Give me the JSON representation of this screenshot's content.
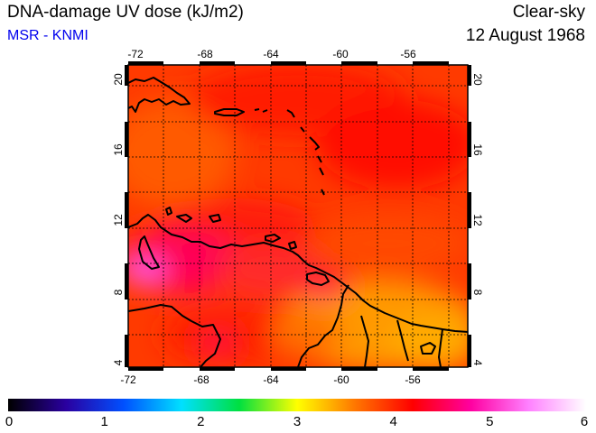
{
  "header": {
    "title": "DNA-damage UV dose (kJ/m2)",
    "organization": "MSR - KNMI",
    "sky_condition": "Clear-sky",
    "date": "12 August 1968"
  },
  "map": {
    "lon_range": [
      -72,
      -53
    ],
    "lat_range": [
      3.5,
      20.5
    ],
    "lon_ticks": [
      "-72",
      "-68",
      "-64",
      "-60",
      "-56"
    ],
    "lat_ticks": [
      "4",
      "8",
      "12",
      "16",
      "20"
    ],
    "grid": true
  },
  "colorbar": {
    "min": 0,
    "max": 6,
    "labels": [
      "0",
      "1",
      "2",
      "3",
      "4",
      "5",
      "6"
    ],
    "colors": [
      "#000000",
      "#2a00a0",
      "#0050ff",
      "#00e0ff",
      "#00e040",
      "#ffff00",
      "#ff7700",
      "#ff0000",
      "#ff00a0",
      "#ff80ff",
      "#ffffff"
    ]
  }
}
